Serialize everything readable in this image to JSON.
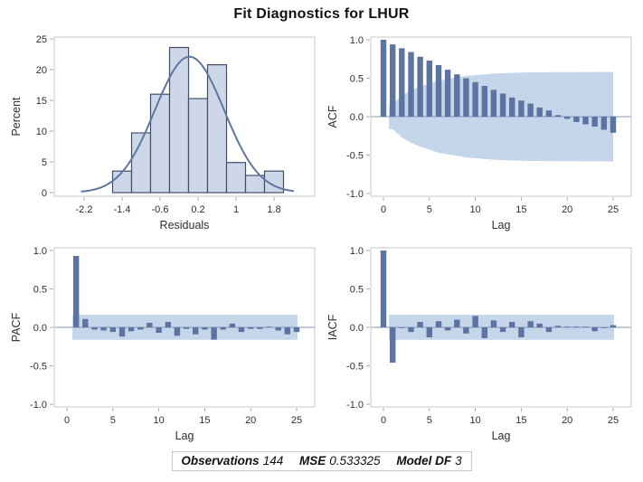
{
  "title": "Fit Diagnostics for LHUR",
  "colors": {
    "bar": "#5b74a2",
    "band": "#c6d6ea",
    "hist_fill": "#cdd7e8",
    "hist_stroke": "#424f6b",
    "curve": "#5f77a0",
    "zero_line": "#8497b5",
    "plot_border": "#c9c9c9",
    "tick": "#adadad",
    "text": "#2f2f2f"
  },
  "stats_bar": {
    "items": [
      {
        "label": "Observations",
        "value": "144"
      },
      {
        "label": "MSE",
        "value": "0.533325"
      },
      {
        "label": "Model DF",
        "value": "3"
      }
    ]
  },
  "chart_data": [
    {
      "id": "residual-histogram",
      "type": "bar",
      "kind": "histogram",
      "xlabel": "Residuals",
      "ylabel": "Percent",
      "xticks": [
        "-2.2",
        "-1.4",
        "-0.6",
        "0.2",
        "1",
        "1.8"
      ],
      "yticks": [
        "0",
        "5",
        "10",
        "15",
        "20",
        "25"
      ],
      "xlim": [
        -2.83,
        2.66
      ],
      "ylim": [
        0,
        26
      ],
      "grid": false,
      "bin_width": 0.4,
      "bin_centers": [
        -1.4,
        -1.0,
        -0.6,
        -0.2,
        0.2,
        0.6,
        1.0,
        1.4,
        1.8
      ],
      "values": [
        3.5,
        9.7,
        16.0,
        23.6,
        15.3,
        20.8,
        4.9,
        2.8,
        3.5
      ],
      "normal_curve": {
        "mu": 0.02,
        "sigma": 0.73,
        "peak": 22.1,
        "range": [
          -2.25,
          2.2
        ]
      }
    },
    {
      "id": "acf-plot",
      "type": "bar",
      "kind": "correlogram",
      "xlabel": "Lag",
      "ylabel": "ACF",
      "xticks": [
        "0",
        "5",
        "10",
        "15",
        "20",
        "25"
      ],
      "yticks": [
        "1.0",
        "0.5",
        "0.0",
        "-0.5",
        "-1.0"
      ],
      "xlim": [
        -1.5,
        27
      ],
      "ylim": [
        -1,
        1
      ],
      "grid": false,
      "start_lag": 0,
      "values": [
        1.0,
        0.94,
        0.89,
        0.84,
        0.78,
        0.73,
        0.67,
        0.61,
        0.55,
        0.5,
        0.45,
        0.4,
        0.35,
        0.3,
        0.25,
        0.21,
        0.17,
        0.12,
        0.08,
        0.02,
        -0.03,
        -0.07,
        -0.1,
        -0.13,
        -0.17,
        -0.21
      ],
      "band": {
        "shape": "funnel",
        "start_lag": 0.6,
        "upper": [
          0.163,
          0.27,
          0.34,
          0.39,
          0.43,
          0.47,
          0.49,
          0.51,
          0.53,
          0.54,
          0.55,
          0.56,
          0.566,
          0.57,
          0.573,
          0.576,
          0.577,
          0.578,
          0.579,
          0.58,
          0.58,
          0.581,
          0.581,
          0.582,
          0.582
        ]
      }
    },
    {
      "id": "pacf-plot",
      "type": "bar",
      "kind": "correlogram",
      "xlabel": "Lag",
      "ylabel": "PACF",
      "xticks": [
        "0",
        "5",
        "10",
        "15",
        "20",
        "25"
      ],
      "yticks": [
        "1.0",
        "0.5",
        "0.0",
        "-0.5",
        "-1.0"
      ],
      "xlim": [
        -1.5,
        27
      ],
      "ylim": [
        -1,
        1
      ],
      "grid": false,
      "start_lag": 1,
      "values": [
        0.93,
        0.11,
        -0.03,
        -0.04,
        -0.06,
        -0.12,
        -0.05,
        -0.03,
        0.06,
        -0.07,
        0.07,
        -0.11,
        -0.02,
        -0.09,
        -0.03,
        -0.16,
        -0.03,
        0.05,
        -0.06,
        -0.02,
        -0.02,
        0.01,
        -0.04,
        -0.09,
        -0.06
      ],
      "band": {
        "shape": "flat",
        "halfwidth": 0.163,
        "start_lag": 0.6,
        "end_lag": 25.1
      }
    },
    {
      "id": "iacf-plot",
      "type": "bar",
      "kind": "correlogram",
      "xlabel": "Lag",
      "ylabel": "IACF",
      "xticks": [
        "0",
        "5",
        "10",
        "15",
        "20",
        "25"
      ],
      "yticks": [
        "1.0",
        "0.5",
        "0.0",
        "-0.5",
        "-1.0"
      ],
      "xlim": [
        -1.5,
        27
      ],
      "ylim": [
        -1,
        1
      ],
      "grid": false,
      "start_lag": 0,
      "values": [
        1.0,
        -0.46,
        -0.01,
        -0.06,
        0.07,
        -0.13,
        0.08,
        -0.04,
        0.1,
        -0.08,
        0.15,
        -0.14,
        0.09,
        -0.06,
        0.07,
        -0.13,
        0.08,
        0.05,
        -0.06,
        0.02,
        0.005,
        0.01,
        0.005,
        -0.05,
        -0.01,
        0.03
      ],
      "band": {
        "shape": "flat",
        "halfwidth": 0.163,
        "start_lag": 0.6,
        "end_lag": 25.1
      }
    }
  ]
}
